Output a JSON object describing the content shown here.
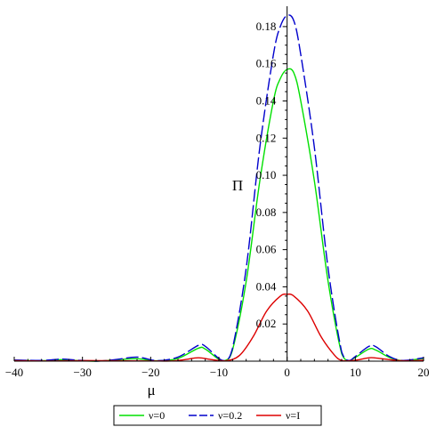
{
  "chart_data": {
    "type": "line",
    "xlabel": "μ",
    "ylabel": "Π",
    "xlim": [
      -40,
      20
    ],
    "ylim": [
      0,
      0.19
    ],
    "grid": false,
    "legend_placement": "bottom-center",
    "x_ticks": [
      -40,
      -30,
      -20,
      -10,
      0,
      10,
      20
    ],
    "y_ticks": [
      0.02,
      0.04,
      0.06,
      0.08,
      0.1,
      0.12,
      0.14,
      0.16,
      0.18
    ],
    "series": [
      {
        "name": "ν=0",
        "color": "#00e000",
        "style": "solid",
        "x": [
          -40,
          -36,
          -33,
          -31,
          -28,
          -25,
          -22,
          -19,
          -16,
          -13,
          -12,
          -10,
          -9,
          -8,
          -6,
          -4,
          -2,
          -1,
          0,
          1,
          2,
          4,
          6,
          8,
          9,
          10,
          12,
          13,
          15,
          17,
          20
        ],
        "y": [
          0.0005,
          0.0003,
          0.0008,
          0.0004,
          0,
          0.0007,
          0.0013,
          0.0002,
          0.0015,
          0.007,
          0.0065,
          0.001,
          0.0005,
          0.006,
          0.043,
          0.097,
          0.14,
          0.152,
          0.157,
          0.155,
          0.14,
          0.097,
          0.043,
          0.004,
          0.0003,
          0.002,
          0.0065,
          0.006,
          0.002,
          0.0003,
          0.0015
        ]
      },
      {
        "name": "ν=0.2",
        "color": "#0000cc",
        "style": "dashed",
        "x": [
          -40,
          -36,
          -33,
          -31,
          -28,
          -25,
          -22,
          -19,
          -16,
          -13,
          -12,
          -10,
          -9,
          -8,
          -6,
          -4,
          -2,
          -1,
          0,
          1,
          2,
          4,
          6,
          8,
          9,
          10,
          12,
          13,
          15,
          17,
          20
        ],
        "y": [
          0.0006,
          0.0004,
          0.0011,
          0.0006,
          0,
          0.0009,
          0.0022,
          0.0003,
          0.0022,
          0.0085,
          0.008,
          0.0015,
          0.0006,
          0.007,
          0.05,
          0.115,
          0.165,
          0.18,
          0.186,
          0.183,
          0.165,
          0.115,
          0.05,
          0.005,
          0.0004,
          0.0025,
          0.008,
          0.0078,
          0.0025,
          0.0004,
          0.0018
        ]
      },
      {
        "name": "ν=I",
        "color": "#dd0000",
        "style": "solid",
        "x": [
          -40,
          -35,
          -30,
          -25,
          -20,
          -17,
          -15,
          -13,
          -11,
          -9,
          -7,
          -5,
          -3,
          -1,
          0,
          1,
          3,
          5,
          7,
          8,
          9,
          10,
          12,
          13,
          15,
          17,
          20
        ],
        "y": [
          0.0003,
          0.0001,
          0.0003,
          0.0002,
          0.0001,
          0.0001,
          0.0008,
          0.0018,
          0.0008,
          0.0002,
          0.003,
          0.013,
          0.027,
          0.035,
          0.036,
          0.035,
          0.027,
          0.013,
          0.003,
          0.0004,
          0.0002,
          0.0005,
          0.0018,
          0.0017,
          0.0008,
          0.0002,
          0.0005
        ]
      }
    ]
  }
}
